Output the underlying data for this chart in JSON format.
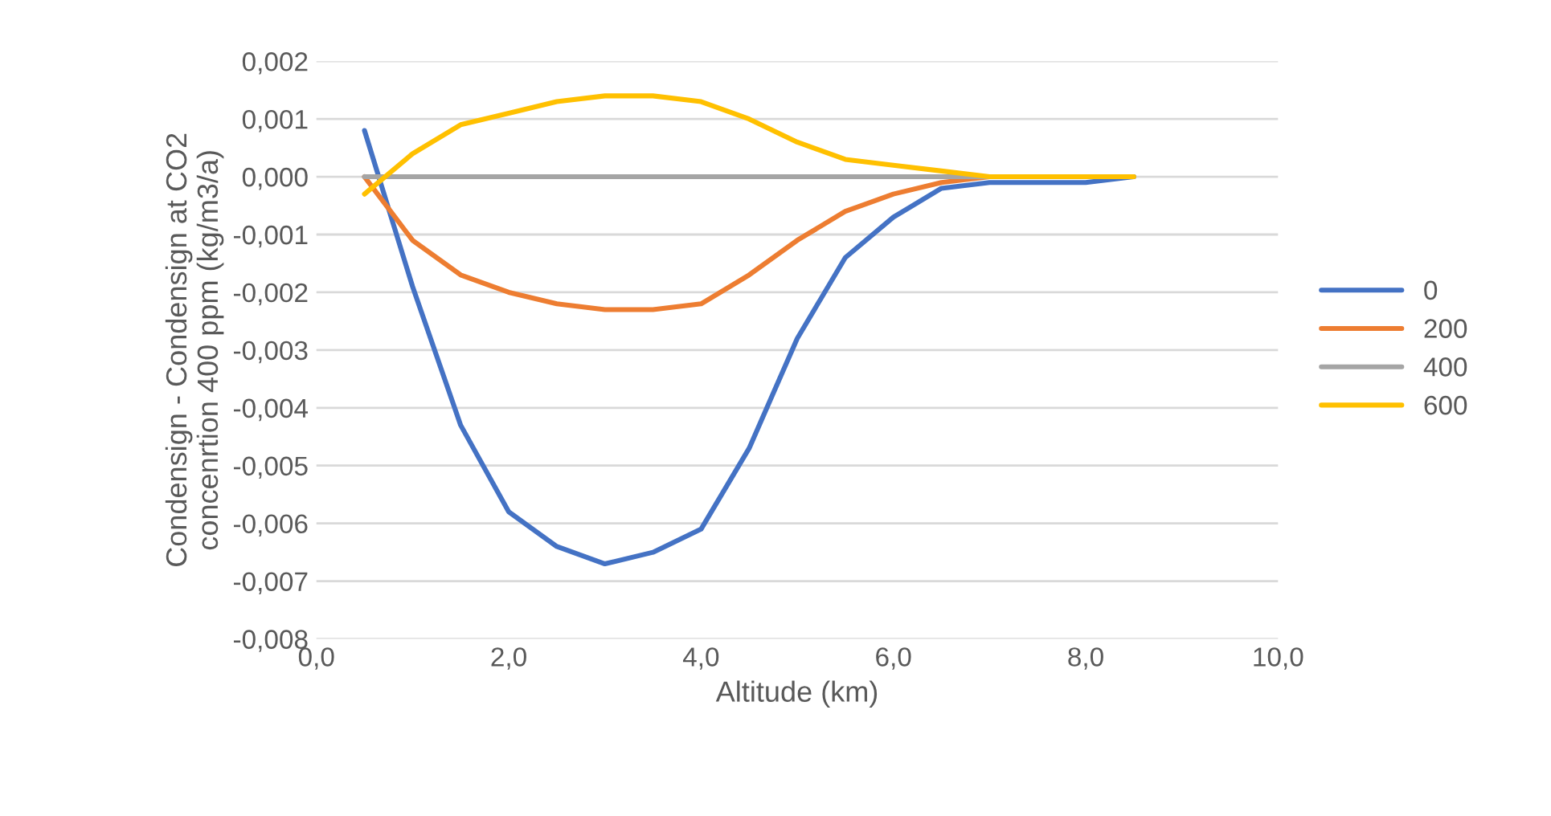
{
  "chart_data": {
    "type": "line",
    "xlabel": "Altitude (km)",
    "ylabel": "Condensign - Condensign at CO2\nconcenrtion 400 ppm (kg/m3/a)",
    "x": [
      0.5,
      1,
      1.5,
      2,
      2.5,
      3,
      3.5,
      4,
      4.5,
      5,
      5.5,
      6,
      6.5,
      7,
      7.5,
      8,
      8.5
    ],
    "series": [
      {
        "name": "0",
        "color": "#4472c4",
        "values": [
          0.0008,
          -0.0019,
          -0.0043,
          -0.0058,
          -0.0064,
          -0.0067,
          -0.0065,
          -0.0061,
          -0.0047,
          -0.0028,
          -0.0014,
          -0.0007,
          -0.0002,
          -0.0001,
          -0.0001,
          -0.0001,
          0
        ]
      },
      {
        "name": "200",
        "color": "#ed7d31",
        "values": [
          0,
          -0.0011,
          -0.0017,
          -0.002,
          -0.0022,
          -0.0023,
          -0.0023,
          -0.0022,
          -0.0017,
          -0.0011,
          -0.0006,
          -0.0003,
          -0.0001,
          0,
          0,
          null,
          null
        ]
      },
      {
        "name": "400",
        "color": "#a5a5a5",
        "values": [
          0,
          0,
          0,
          0,
          0,
          0,
          0,
          0,
          0,
          0,
          0,
          0,
          0,
          0,
          0,
          0,
          0
        ]
      },
      {
        "name": "600",
        "color": "#ffc000",
        "values": [
          -0.0003,
          0.0004,
          0.0009,
          0.0011,
          0.0013,
          0.0014,
          0.0014,
          0.0013,
          0.001,
          0.0006,
          0.0003,
          0.0002,
          0.0001,
          0,
          0,
          0,
          0
        ]
      }
    ],
    "xlim": [
      0,
      10
    ],
    "xticks": [
      {
        "value": 0,
        "label": "0,0"
      },
      {
        "value": 2,
        "label": "2,0"
      },
      {
        "value": 4,
        "label": "4,0"
      },
      {
        "value": 6,
        "label": "6,0"
      },
      {
        "value": 8,
        "label": "8,0"
      },
      {
        "value": 10,
        "label": "10,0"
      }
    ],
    "ylim": [
      -0.008,
      0.002
    ],
    "yticks": [
      {
        "value": -0.008,
        "label": "-0,008"
      },
      {
        "value": -0.007,
        "label": "-0,007"
      },
      {
        "value": -0.006,
        "label": "-0,006"
      },
      {
        "value": -0.005,
        "label": "-0,005"
      },
      {
        "value": -0.004,
        "label": "-0,004"
      },
      {
        "value": -0.003,
        "label": "-0,003"
      },
      {
        "value": -0.002,
        "label": "-0,002"
      },
      {
        "value": -0.001,
        "label": "-0,001"
      },
      {
        "value": 0,
        "label": "0,000"
      },
      {
        "value": 0.001,
        "label": "0,001"
      },
      {
        "value": 0.002,
        "label": "0,002"
      }
    ],
    "grid": "y",
    "legend": "right",
    "marker": "none",
    "line_style": "solid"
  }
}
